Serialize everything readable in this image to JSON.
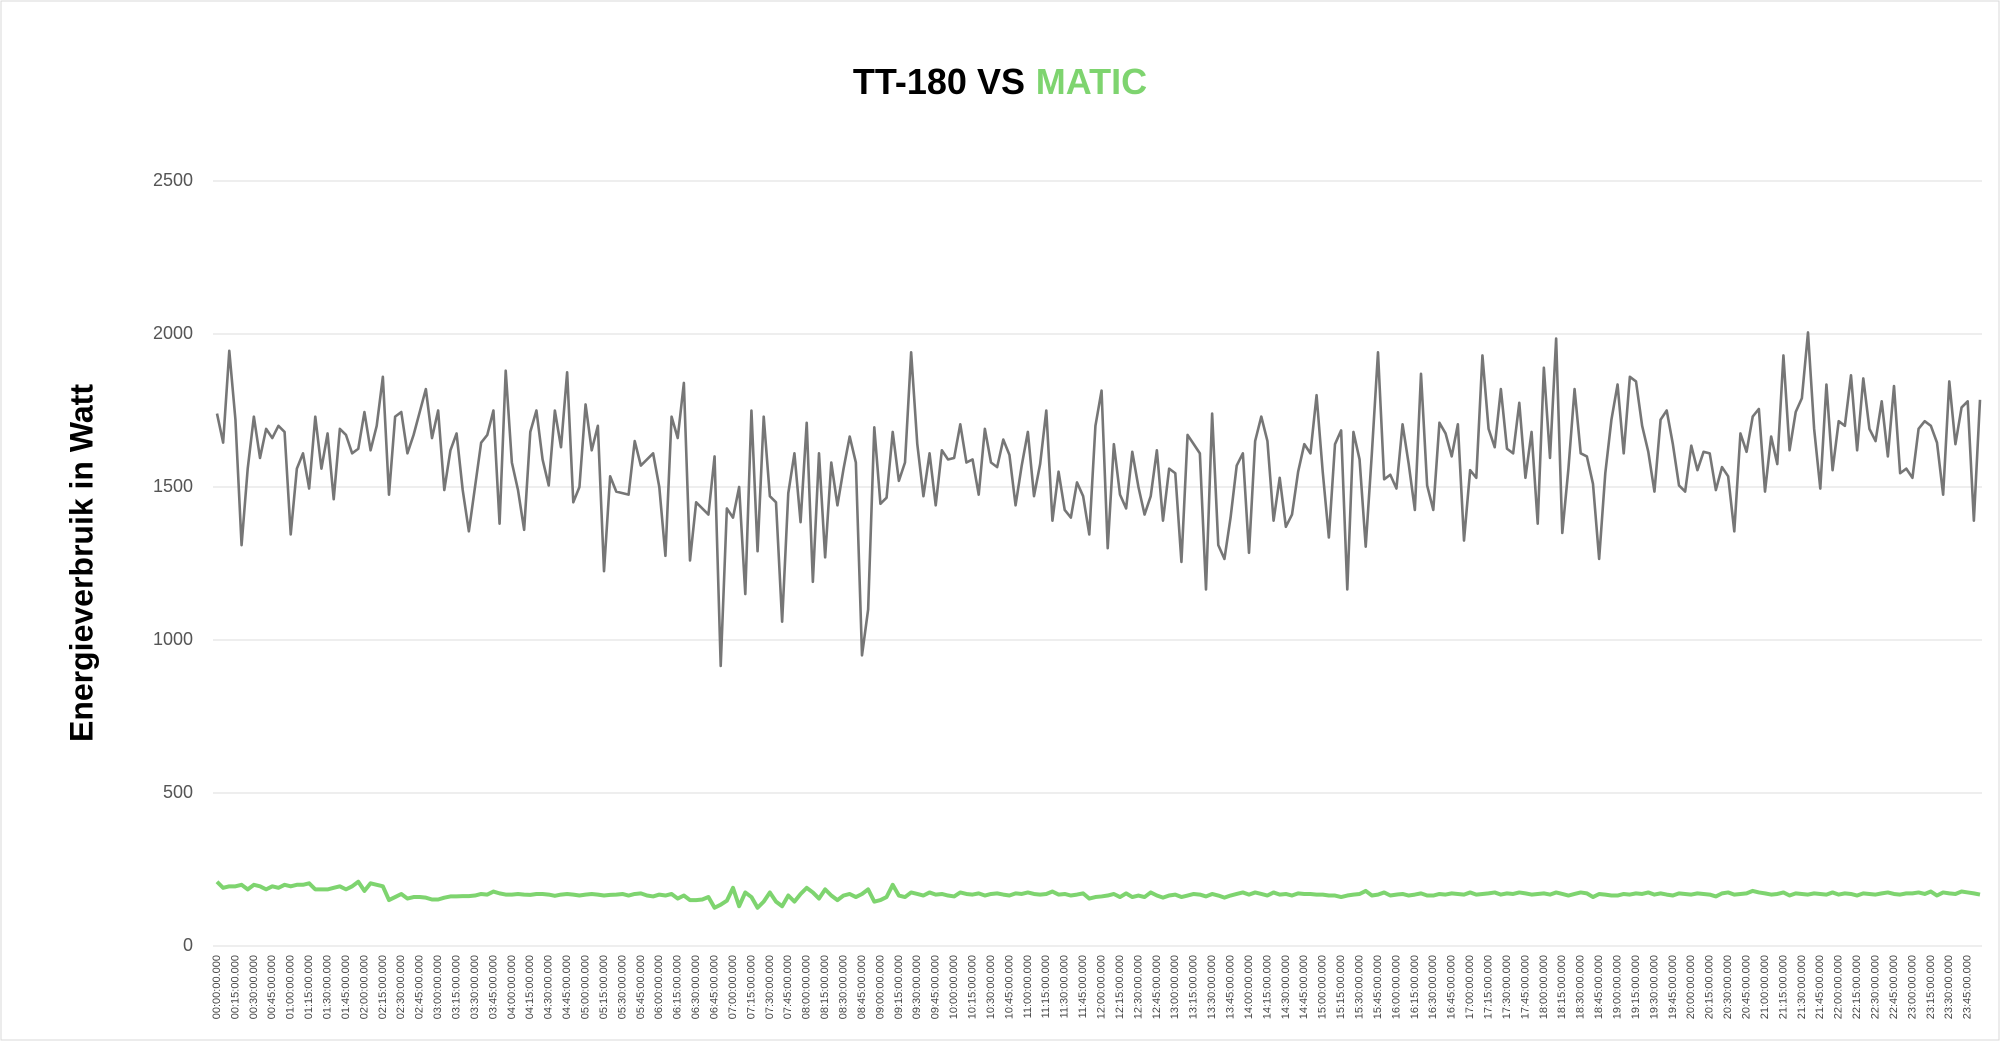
{
  "chart_data": {
    "type": "line",
    "title": [
      {
        "text": "TT-180 VS",
        "color": "#000000"
      },
      {
        "text": "MATIC",
        "color": "#7ed46f"
      }
    ],
    "ylabel": "Energieverbruik in Watt",
    "ylim": [
      0,
      2500
    ],
    "yticks": [
      0,
      500,
      1000,
      1500,
      2000,
      2500
    ],
    "grid": true,
    "categories": [
      "00:00:00.000",
      null,
      null,
      "00:15:00.000",
      null,
      null,
      "00:30:00.000",
      null,
      null,
      "00:45:00.000",
      null,
      null,
      "01:00:00.000",
      null,
      null,
      "01:15:00.000",
      null,
      null,
      "01:30:00.000",
      null,
      null,
      "01:45:00.000",
      null,
      null,
      "02:00:00.000",
      null,
      null,
      "02:15:00.000",
      null,
      null,
      "02:30:00.000",
      null,
      null,
      "02:45:00.000",
      null,
      null,
      "03:00:00.000",
      null,
      null,
      "03:15:00.000",
      null,
      null,
      "03:30:00.000",
      null,
      null,
      "03:45:00.000",
      null,
      null,
      "04:00:00.000",
      null,
      null,
      "04:15:00.000",
      null,
      null,
      "04:30:00.000",
      null,
      null,
      "04:45:00.000",
      null,
      null,
      "05:00:00.000",
      null,
      null,
      "05:15:00.000",
      null,
      null,
      "05:30:00.000",
      null,
      null,
      "05:45:00.000",
      null,
      null,
      "06:00:00.000",
      null,
      null,
      "06:15:00.000",
      null,
      null,
      "06:30:00.000",
      null,
      null,
      "06:45:00.000",
      null,
      null,
      "07:00:00.000",
      null,
      null,
      "07:15:00.000",
      null,
      null,
      "07:30:00.000",
      null,
      null,
      "07:45:00.000",
      null,
      null,
      "08:00:00.000",
      null,
      null,
      "08:15:00.000",
      null,
      null,
      "08:30:00.000",
      null,
      null,
      "08:45:00.000",
      null,
      null,
      "09:00:00.000",
      null,
      null,
      "09:15:00.000",
      null,
      null,
      "09:30:00.000",
      null,
      null,
      "09:45:00.000",
      null,
      null,
      "10:00:00.000",
      null,
      null,
      "10:15:00.000",
      null,
      null,
      "10:30:00.000",
      null,
      null,
      "10:45:00.000",
      null,
      null,
      "11:00:00.000",
      null,
      null,
      "11:15:00.000",
      null,
      null,
      "11:30:00.000",
      null,
      null,
      "11:45:00.000",
      null,
      null,
      "12:00:00.000",
      null,
      null,
      "12:15:00.000",
      null,
      null,
      "12:30:00.000",
      null,
      null,
      "12:45:00.000",
      null,
      null,
      "13:00:00.000",
      null,
      null,
      "13:15:00.000",
      null,
      null,
      "13:30:00.000",
      null,
      null,
      "13:45:00.000",
      null,
      null,
      "14:00:00.000",
      null,
      null,
      "14:15:00.000",
      null,
      null,
      "14:30:00.000",
      null,
      null,
      "14:45:00.000",
      null,
      null,
      "15:00:00.000",
      null,
      null,
      "15:15:00.000",
      null,
      null,
      "15:30:00.000",
      null,
      null,
      "15:45:00.000",
      null,
      null,
      "16:00:00.000",
      null,
      null,
      "16:15:00.000",
      null,
      null,
      "16:30:00.000",
      null,
      null,
      "16:45:00.000",
      null,
      null,
      "17:00:00.000",
      null,
      null,
      "17:15:00.000",
      null,
      null,
      "17:30:00.000",
      null,
      null,
      "17:45:00.000",
      null,
      null,
      "18:00:00.000",
      null,
      null,
      "18:15:00.000",
      null,
      null,
      "18:30:00.000",
      null,
      null,
      "18:45:00.000",
      null,
      null,
      "19:00:00.000",
      null,
      null,
      "19:15:00.000",
      null,
      null,
      "19:30:00.000",
      null,
      null,
      "19:45:00.000",
      null,
      null,
      "20:00:00.000",
      null,
      null,
      "20:15:00.000",
      null,
      null,
      "20:30:00.000",
      null,
      null,
      "20:45:00.000",
      null,
      null,
      "21:00:00.000",
      null,
      null,
      "21:15:00.000",
      null,
      null,
      "21:30:00.000",
      null,
      null,
      "21:45:00.000",
      null,
      null,
      "22:00:00.000",
      null,
      null,
      "22:15:00.000",
      null,
      null,
      "22:30:00.000",
      null,
      null,
      "22:45:00.000",
      null,
      null,
      "23:00:00.000",
      null,
      null,
      "23:15:00.000",
      null,
      null,
      "23:30:00.000",
      null,
      null,
      "23:45:00.000",
      null,
      null
    ],
    "series": [
      {
        "color": "#767676",
        "values": [
          1740,
          1645,
          1945,
          1720,
          1310,
          1560,
          1730,
          1595,
          1690,
          1660,
          1700,
          1680,
          1345,
          1560,
          1610,
          1495,
          1730,
          1560,
          1675,
          1460,
          1690,
          1670,
          1610,
          1625,
          1745,
          1620,
          1700,
          1860,
          1475,
          1730,
          1745,
          1610,
          1670,
          1745,
          1820,
          1660,
          1750,
          1490,
          1620,
          1675,
          1490,
          1355,
          1500,
          1645,
          1670,
          1750,
          1380,
          1880,
          1580,
          1490,
          1360,
          1680,
          1750,
          1590,
          1505,
          1750,
          1630,
          1875,
          1450,
          1500,
          1770,
          1620,
          1700,
          1225,
          1535,
          1485,
          1480,
          1475,
          1650,
          1570,
          1590,
          1610,
          1500,
          1275,
          1730,
          1660,
          1840,
          1260,
          1450,
          1430,
          1410,
          1600,
          915,
          1430,
          1400,
          1500,
          1150,
          1750,
          1290,
          1730,
          1470,
          1450,
          1060,
          1480,
          1610,
          1385,
          1710,
          1190,
          1610,
          1270,
          1580,
          1440,
          1560,
          1665,
          1580,
          950,
          1100,
          1695,
          1445,
          1465,
          1680,
          1520,
          1580,
          1940,
          1640,
          1470,
          1610,
          1440,
          1620,
          1590,
          1595,
          1705,
          1580,
          1590,
          1475,
          1690,
          1580,
          1565,
          1655,
          1605,
          1440,
          1570,
          1680,
          1470,
          1575,
          1750,
          1390,
          1550,
          1425,
          1400,
          1515,
          1470,
          1345,
          1700,
          1815,
          1300,
          1640,
          1475,
          1430,
          1615,
          1500,
          1410,
          1470,
          1620,
          1390,
          1560,
          1545,
          1255,
          1670,
          1640,
          1610,
          1165,
          1740,
          1310,
          1265,
          1400,
          1570,
          1610,
          1285,
          1650,
          1730,
          1650,
          1390,
          1530,
          1370,
          1410,
          1550,
          1640,
          1610,
          1800,
          1550,
          1335,
          1640,
          1685,
          1165,
          1680,
          1590,
          1305,
          1610,
          1940,
          1525,
          1540,
          1495,
          1705,
          1575,
          1425,
          1870,
          1505,
          1425,
          1710,
          1675,
          1600,
          1705,
          1325,
          1555,
          1530,
          1930,
          1690,
          1630,
          1820,
          1625,
          1610,
          1775,
          1530,
          1680,
          1380,
          1890,
          1595,
          1985,
          1350,
          1560,
          1820,
          1610,
          1600,
          1510,
          1265,
          1545,
          1720,
          1835,
          1610,
          1860,
          1845,
          1700,
          1615,
          1485,
          1720,
          1750,
          1640,
          1505,
          1485,
          1635,
          1555,
          1615,
          1610,
          1490,
          1565,
          1535,
          1355,
          1675,
          1615,
          1730,
          1755,
          1485,
          1665,
          1575,
          1930,
          1620,
          1745,
          1790,
          2005,
          1690,
          1495,
          1835,
          1555,
          1715,
          1700,
          1865,
          1620,
          1855,
          1690,
          1650,
          1780,
          1600,
          1830,
          1545,
          1560,
          1530,
          1690,
          1715,
          1700,
          1645,
          1475,
          1845,
          1640,
          1760,
          1780,
          1390,
          1785
        ]
      },
      {
        "color": "#7ed46f",
        "values": [
          210,
          190,
          195,
          195,
          200,
          185,
          200,
          195,
          185,
          195,
          190,
          200,
          195,
          200,
          200,
          205,
          185,
          185,
          185,
          190,
          195,
          185,
          195,
          210,
          180,
          205,
          200,
          195,
          150,
          160,
          170,
          155,
          160,
          160,
          158,
          152,
          152,
          158,
          162,
          162,
          163,
          163,
          165,
          170,
          168,
          178,
          172,
          168,
          168,
          170,
          168,
          167,
          170,
          170,
          168,
          164,
          168,
          170,
          168,
          165,
          168,
          170,
          168,
          165,
          167,
          168,
          170,
          165,
          170,
          172,
          165,
          162,
          168,
          165,
          170,
          155,
          165,
          150,
          150,
          152,
          160,
          125,
          135,
          148,
          190,
          130,
          175,
          160,
          125,
          145,
          175,
          145,
          130,
          165,
          145,
          170,
          190,
          175,
          155,
          185,
          165,
          150,
          165,
          170,
          160,
          170,
          185,
          145,
          150,
          160,
          200,
          165,
          160,
          175,
          170,
          165,
          175,
          168,
          170,
          165,
          162,
          175,
          170,
          168,
          172,
          165,
          170,
          172,
          168,
          165,
          172,
          170,
          175,
          170,
          168,
          170,
          178,
          168,
          170,
          165,
          168,
          172,
          155,
          160,
          162,
          165,
          170,
          160,
          172,
          160,
          165,
          160,
          175,
          165,
          158,
          165,
          168,
          160,
          165,
          170,
          168,
          162,
          170,
          165,
          158,
          165,
          170,
          175,
          168,
          175,
          170,
          165,
          175,
          168,
          170,
          165,
          172,
          170,
          170,
          168,
          168,
          165,
          165,
          160,
          165,
          168,
          170,
          180,
          165,
          168,
          175,
          165,
          168,
          170,
          165,
          168,
          172,
          165,
          165,
          170,
          168,
          172,
          170,
          168,
          175,
          168,
          170,
          172,
          175,
          168,
          172,
          170,
          175,
          172,
          168,
          170,
          172,
          168,
          175,
          170,
          165,
          170,
          175,
          172,
          160,
          170,
          168,
          165,
          165,
          170,
          168,
          172,
          170,
          175,
          168,
          172,
          168,
          165,
          172,
          170,
          168,
          172,
          170,
          168,
          162,
          172,
          175,
          168,
          170,
          172,
          180,
          175,
          172,
          168,
          170,
          175,
          165,
          172,
          170,
          168,
          172,
          170,
          168,
          175,
          168,
          172,
          170,
          165,
          172,
          170,
          168,
          172,
          175,
          170,
          168,
          172,
          172,
          175,
          170,
          178,
          165,
          175,
          172,
          170,
          178,
          175,
          172,
          168
        ]
      }
    ]
  }
}
